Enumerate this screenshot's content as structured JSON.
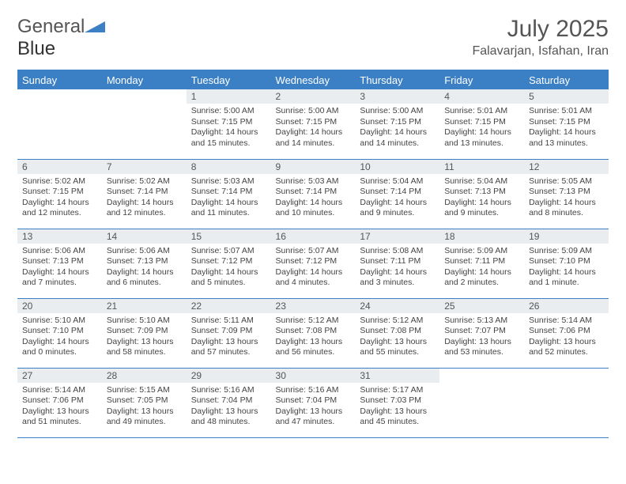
{
  "logo": {
    "text1": "General",
    "text2": "Blue"
  },
  "title": "July 2025",
  "location": "Falavarjan, Isfahan, Iran",
  "colors": {
    "header_bg": "#3b7fc4",
    "header_text": "#ffffff",
    "daynum_bg": "#e9edf0",
    "divider": "#3b7fc4",
    "body_text": "#444444"
  },
  "weekdays": [
    "Sunday",
    "Monday",
    "Tuesday",
    "Wednesday",
    "Thursday",
    "Friday",
    "Saturday"
  ],
  "weeks": [
    [
      null,
      null,
      {
        "n": "1",
        "sr": "5:00 AM",
        "ss": "7:15 PM",
        "dl": "14 hours and 15 minutes."
      },
      {
        "n": "2",
        "sr": "5:00 AM",
        "ss": "7:15 PM",
        "dl": "14 hours and 14 minutes."
      },
      {
        "n": "3",
        "sr": "5:00 AM",
        "ss": "7:15 PM",
        "dl": "14 hours and 14 minutes."
      },
      {
        "n": "4",
        "sr": "5:01 AM",
        "ss": "7:15 PM",
        "dl": "14 hours and 13 minutes."
      },
      {
        "n": "5",
        "sr": "5:01 AM",
        "ss": "7:15 PM",
        "dl": "14 hours and 13 minutes."
      }
    ],
    [
      {
        "n": "6",
        "sr": "5:02 AM",
        "ss": "7:15 PM",
        "dl": "14 hours and 12 minutes."
      },
      {
        "n": "7",
        "sr": "5:02 AM",
        "ss": "7:14 PM",
        "dl": "14 hours and 12 minutes."
      },
      {
        "n": "8",
        "sr": "5:03 AM",
        "ss": "7:14 PM",
        "dl": "14 hours and 11 minutes."
      },
      {
        "n": "9",
        "sr": "5:03 AM",
        "ss": "7:14 PM",
        "dl": "14 hours and 10 minutes."
      },
      {
        "n": "10",
        "sr": "5:04 AM",
        "ss": "7:14 PM",
        "dl": "14 hours and 9 minutes."
      },
      {
        "n": "11",
        "sr": "5:04 AM",
        "ss": "7:13 PM",
        "dl": "14 hours and 9 minutes."
      },
      {
        "n": "12",
        "sr": "5:05 AM",
        "ss": "7:13 PM",
        "dl": "14 hours and 8 minutes."
      }
    ],
    [
      {
        "n": "13",
        "sr": "5:06 AM",
        "ss": "7:13 PM",
        "dl": "14 hours and 7 minutes."
      },
      {
        "n": "14",
        "sr": "5:06 AM",
        "ss": "7:13 PM",
        "dl": "14 hours and 6 minutes."
      },
      {
        "n": "15",
        "sr": "5:07 AM",
        "ss": "7:12 PM",
        "dl": "14 hours and 5 minutes."
      },
      {
        "n": "16",
        "sr": "5:07 AM",
        "ss": "7:12 PM",
        "dl": "14 hours and 4 minutes."
      },
      {
        "n": "17",
        "sr": "5:08 AM",
        "ss": "7:11 PM",
        "dl": "14 hours and 3 minutes."
      },
      {
        "n": "18",
        "sr": "5:09 AM",
        "ss": "7:11 PM",
        "dl": "14 hours and 2 minutes."
      },
      {
        "n": "19",
        "sr": "5:09 AM",
        "ss": "7:10 PM",
        "dl": "14 hours and 1 minute."
      }
    ],
    [
      {
        "n": "20",
        "sr": "5:10 AM",
        "ss": "7:10 PM",
        "dl": "14 hours and 0 minutes."
      },
      {
        "n": "21",
        "sr": "5:10 AM",
        "ss": "7:09 PM",
        "dl": "13 hours and 58 minutes."
      },
      {
        "n": "22",
        "sr": "5:11 AM",
        "ss": "7:09 PM",
        "dl": "13 hours and 57 minutes."
      },
      {
        "n": "23",
        "sr": "5:12 AM",
        "ss": "7:08 PM",
        "dl": "13 hours and 56 minutes."
      },
      {
        "n": "24",
        "sr": "5:12 AM",
        "ss": "7:08 PM",
        "dl": "13 hours and 55 minutes."
      },
      {
        "n": "25",
        "sr": "5:13 AM",
        "ss": "7:07 PM",
        "dl": "13 hours and 53 minutes."
      },
      {
        "n": "26",
        "sr": "5:14 AM",
        "ss": "7:06 PM",
        "dl": "13 hours and 52 minutes."
      }
    ],
    [
      {
        "n": "27",
        "sr": "5:14 AM",
        "ss": "7:06 PM",
        "dl": "13 hours and 51 minutes."
      },
      {
        "n": "28",
        "sr": "5:15 AM",
        "ss": "7:05 PM",
        "dl": "13 hours and 49 minutes."
      },
      {
        "n": "29",
        "sr": "5:16 AM",
        "ss": "7:04 PM",
        "dl": "13 hours and 48 minutes."
      },
      {
        "n": "30",
        "sr": "5:16 AM",
        "ss": "7:04 PM",
        "dl": "13 hours and 47 minutes."
      },
      {
        "n": "31",
        "sr": "5:17 AM",
        "ss": "7:03 PM",
        "dl": "13 hours and 45 minutes."
      },
      null,
      null
    ]
  ],
  "labels": {
    "sunrise": "Sunrise: ",
    "sunset": "Sunset: ",
    "daylight": "Daylight: "
  }
}
